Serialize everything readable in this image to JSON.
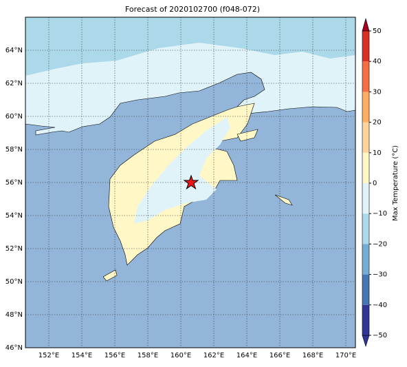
{
  "title": "Forecast of 2020102700 (f048-072)",
  "lat_labels": [
    "46°N",
    "48°N",
    "50°N",
    "52°N",
    "54°N",
    "56°N",
    "58°N",
    "60°N",
    "62°N",
    "64°N"
  ],
  "lon_labels": [
    "152°E",
    "154°E",
    "156°E",
    "158°E",
    "160°E",
    "162°E",
    "164°E",
    "166°E",
    "168°E",
    "170°E"
  ],
  "colorbar": {
    "label": "Max Temperature (°C)",
    "ticks": [
      "−50",
      "−40",
      "−30",
      "−20",
      "−10",
      "0",
      "10",
      "20",
      "30",
      "40",
      "50"
    ],
    "colors": [
      "#313695",
      "#4575b4",
      "#74add1",
      "#abd9e9",
      "#e0f3f8",
      "#fff7c6",
      "#fdd49e",
      "#fdae61",
      "#f46d43",
      "#d73027",
      "#a50026"
    ]
  }
}
